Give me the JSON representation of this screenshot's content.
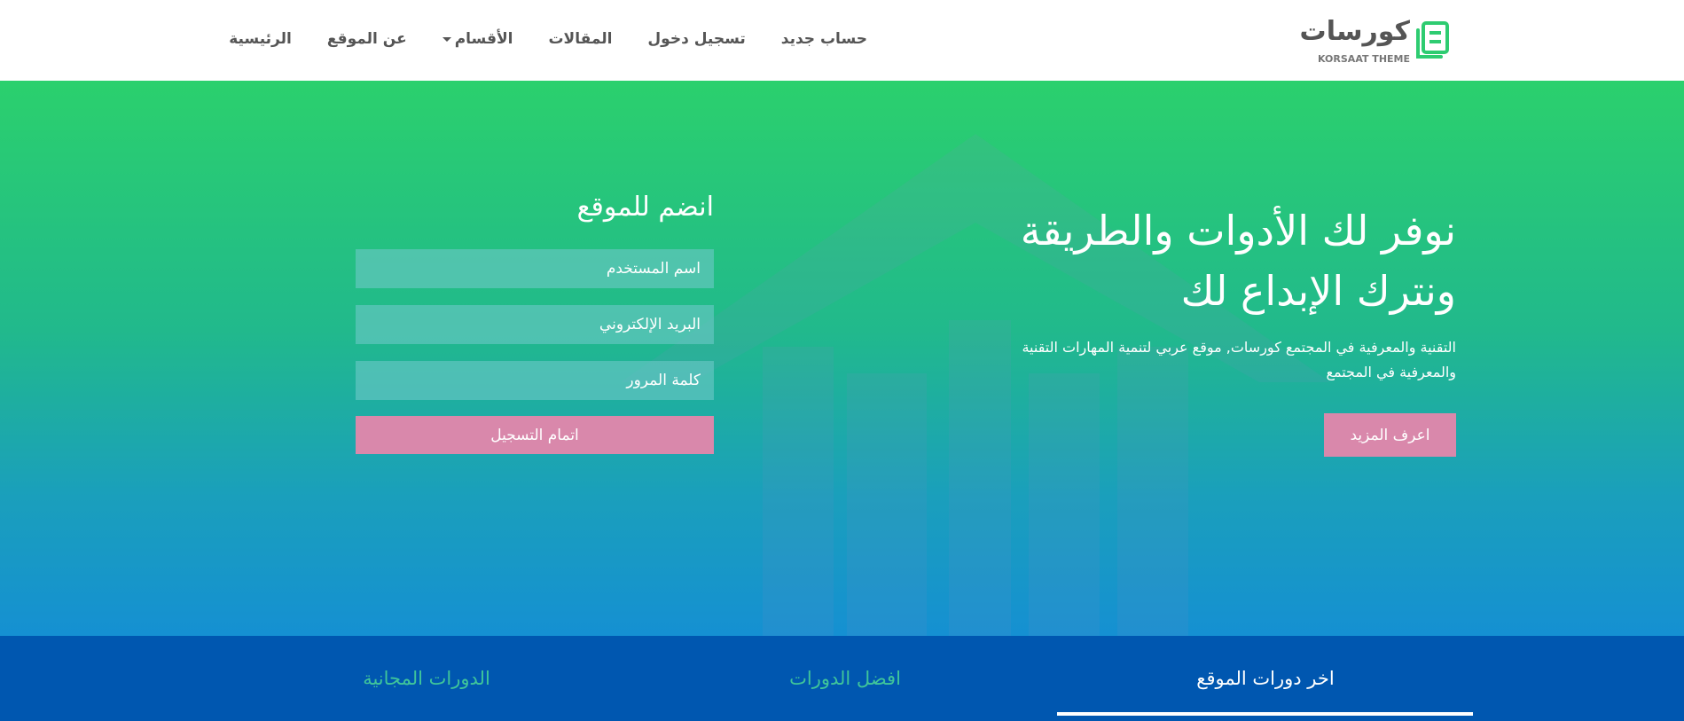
{
  "header": {
    "logo": {
      "text": "كورسات",
      "subtitle": "KORSAAT THEME",
      "color": "#2ecc71"
    },
    "nav": [
      {
        "label": "الرئيسية"
      },
      {
        "label": "عن الموقع"
      },
      {
        "label": "الأقسام",
        "has_dropdown": true
      },
      {
        "label": "المقالات"
      },
      {
        "label": "تسجيل دخول"
      },
      {
        "label": "حساب جديد"
      }
    ]
  },
  "hero": {
    "title_line1": "نوفر لك الأدوات والطريقة",
    "title_line2": "ونترك الإبداع لك",
    "paragraph": "التقنية والمعرفية في المجتمع كورسات, موقع عربي لتنمية المهارات التقنية والمعرفية في المجتمع",
    "more_button": "اعرف المزيد",
    "accent": "#d988ab"
  },
  "signup": {
    "title": "انضم للموقع",
    "username_placeholder": "اسم المستخدم",
    "email_placeholder": "البريد الإلكتروني",
    "password_placeholder": "كلمة المرور",
    "submit": "اتمام التسجيل"
  },
  "tabs": [
    {
      "label": "اخر دورات الموقع",
      "active": true
    },
    {
      "label": "افضل الدورات",
      "active": false
    },
    {
      "label": "الدورات المجانية",
      "active": false
    }
  ]
}
